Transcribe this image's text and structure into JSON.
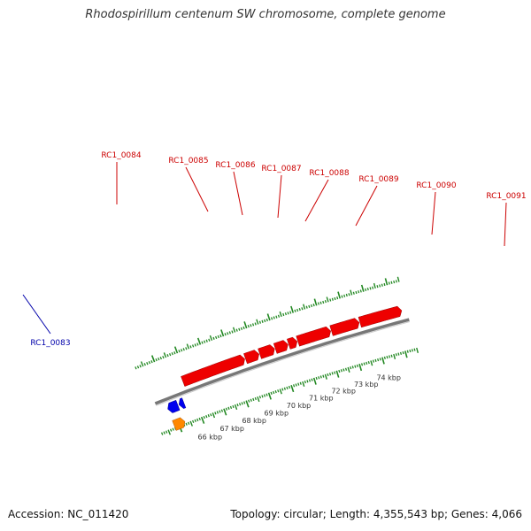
{
  "title": "Rhodospirillum centenum SW chromosome, complete genome",
  "footer": {
    "accession": "Accession: NC_011420",
    "topology": "Topology: circular; Length: 4,355,543 bp; Genes: 4,066"
  },
  "colors": {
    "forward_gene": "#ee0000",
    "reverse_gene": "#0000ee",
    "other_feature": "#ff8800",
    "backbone": "#777777",
    "tick": "#228822",
    "forward_label": "#cc0000",
    "reverse_label": "#0000aa"
  },
  "scale": {
    "start_kbp": 66,
    "end_kbp": 74,
    "unit": "kbp"
  },
  "tick_labels": [
    "66 kbp",
    "67 kbp",
    "68 kbp",
    "69 kbp",
    "70 kbp",
    "71 kbp",
    "72 kbp",
    "73 kbp",
    "74 kbp"
  ],
  "forward_genes": [
    {
      "label": "RC1_0084"
    },
    {
      "label": "RC1_0085"
    },
    {
      "label": "RC1_0086"
    },
    {
      "label": "RC1_0087"
    },
    {
      "label": "RC1_0088"
    },
    {
      "label": "RC1_0089"
    },
    {
      "label": "RC1_0090"
    },
    {
      "label": "RC1_0091"
    }
  ],
  "reverse_genes": [
    {
      "label": "RC1_0083"
    }
  ]
}
